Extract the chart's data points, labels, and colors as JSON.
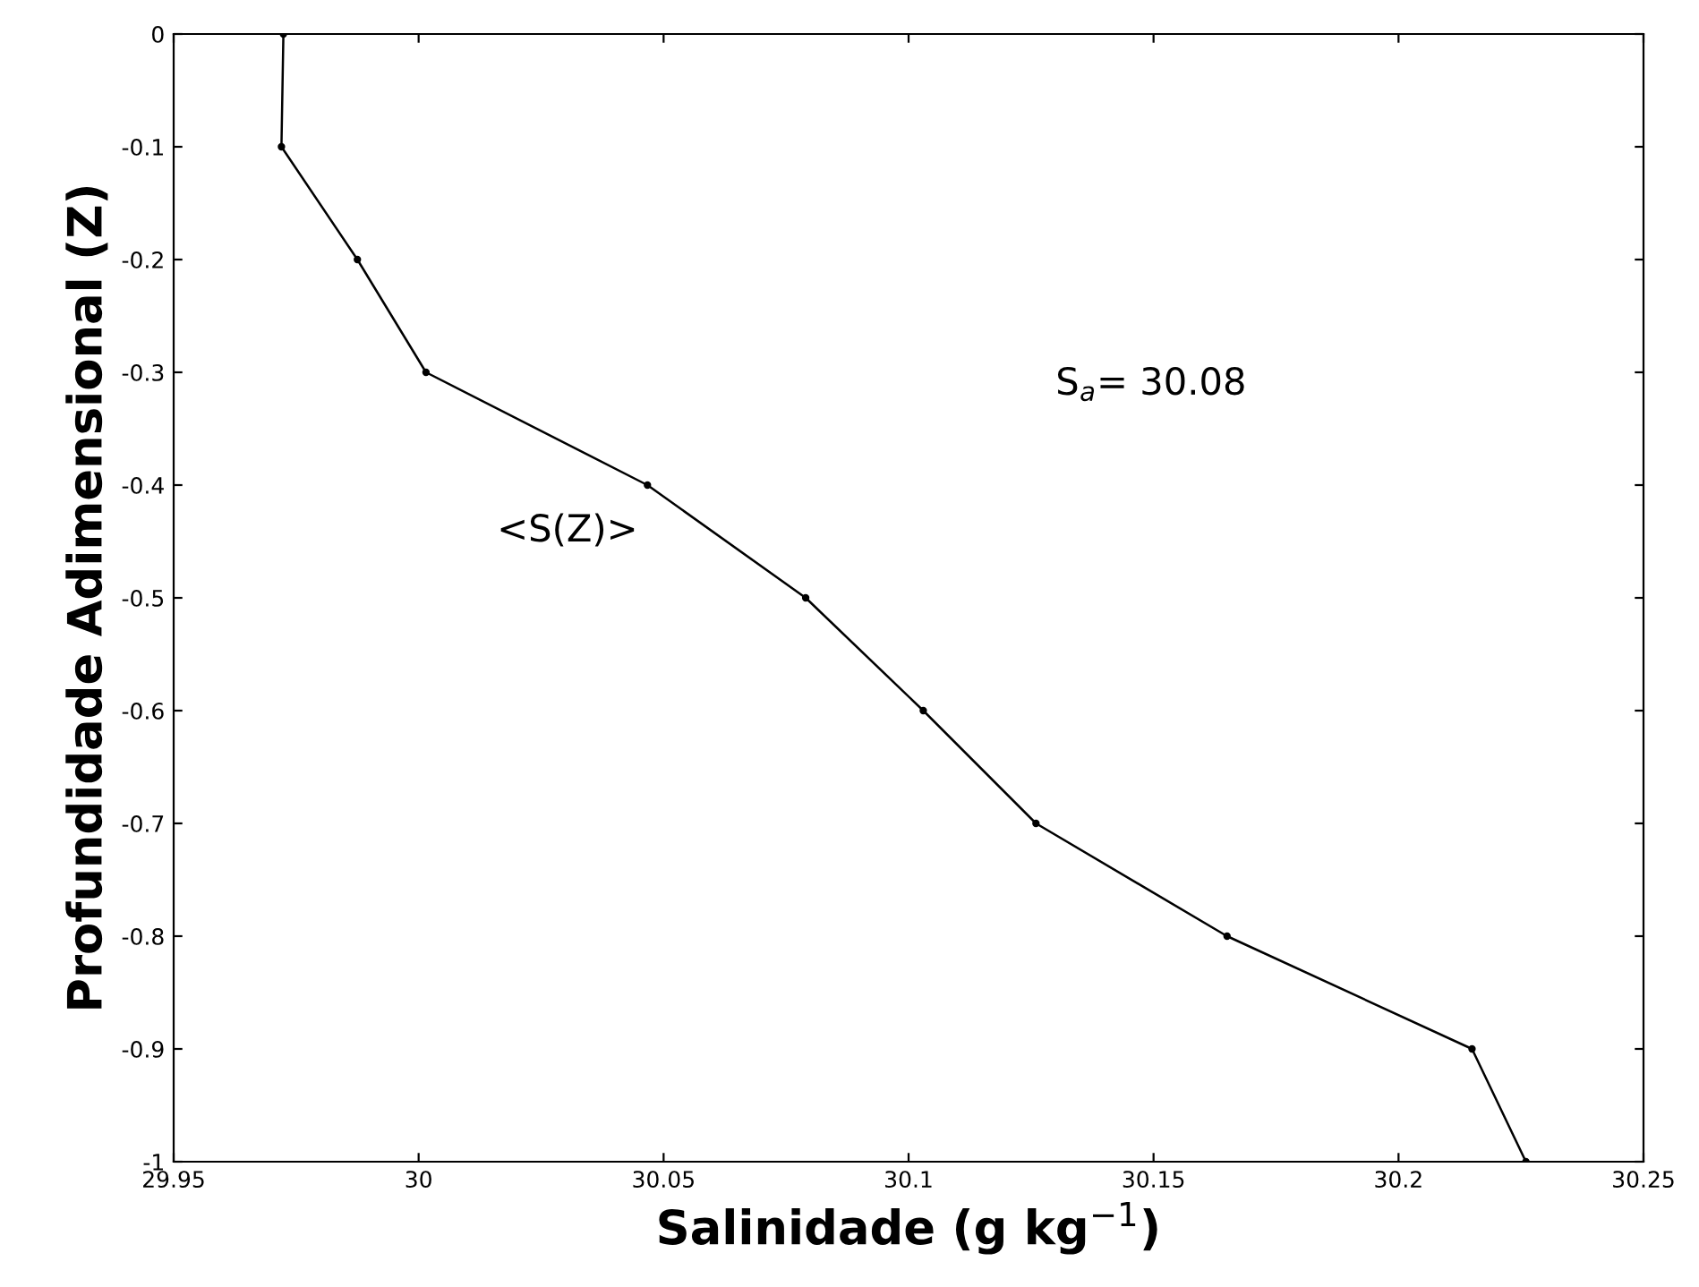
{
  "chart_data": {
    "type": "line",
    "xlabel": "Salinidade (g kg$^{−1}$)",
    "ylabel": "Profundidade Adimensional (Z)",
    "series": [
      {
        "color": "#000000",
        "x": [
          29.9724,
          29.972,
          29.9875,
          30.0015,
          30.0467,
          30.079,
          30.103,
          30.126,
          30.165,
          30.215,
          30.226
        ],
        "values": [
          0,
          -0.1,
          -0.2,
          -0.3,
          -0.4,
          -0.5,
          -0.6,
          -0.7,
          -0.8,
          -0.9,
          -1
        ]
      }
    ],
    "marker": "circle",
    "line_style": "solid",
    "xlim": [
      29.95,
      30.25
    ],
    "xticks": [
      29.95,
      30,
      30.05,
      30.1,
      30.15,
      30.2,
      30.25
    ],
    "ylim": [
      -1,
      0
    ],
    "yticks": [
      -1,
      -0.9,
      -0.8,
      -0.7,
      -0.6,
      -0.5,
      -0.4,
      -0.3,
      -0.2,
      -0.1,
      0
    ],
    "annotations": [
      "S$_{a}$= 30.08",
      "<S(Z)>"
    ],
    "grid": false
  }
}
